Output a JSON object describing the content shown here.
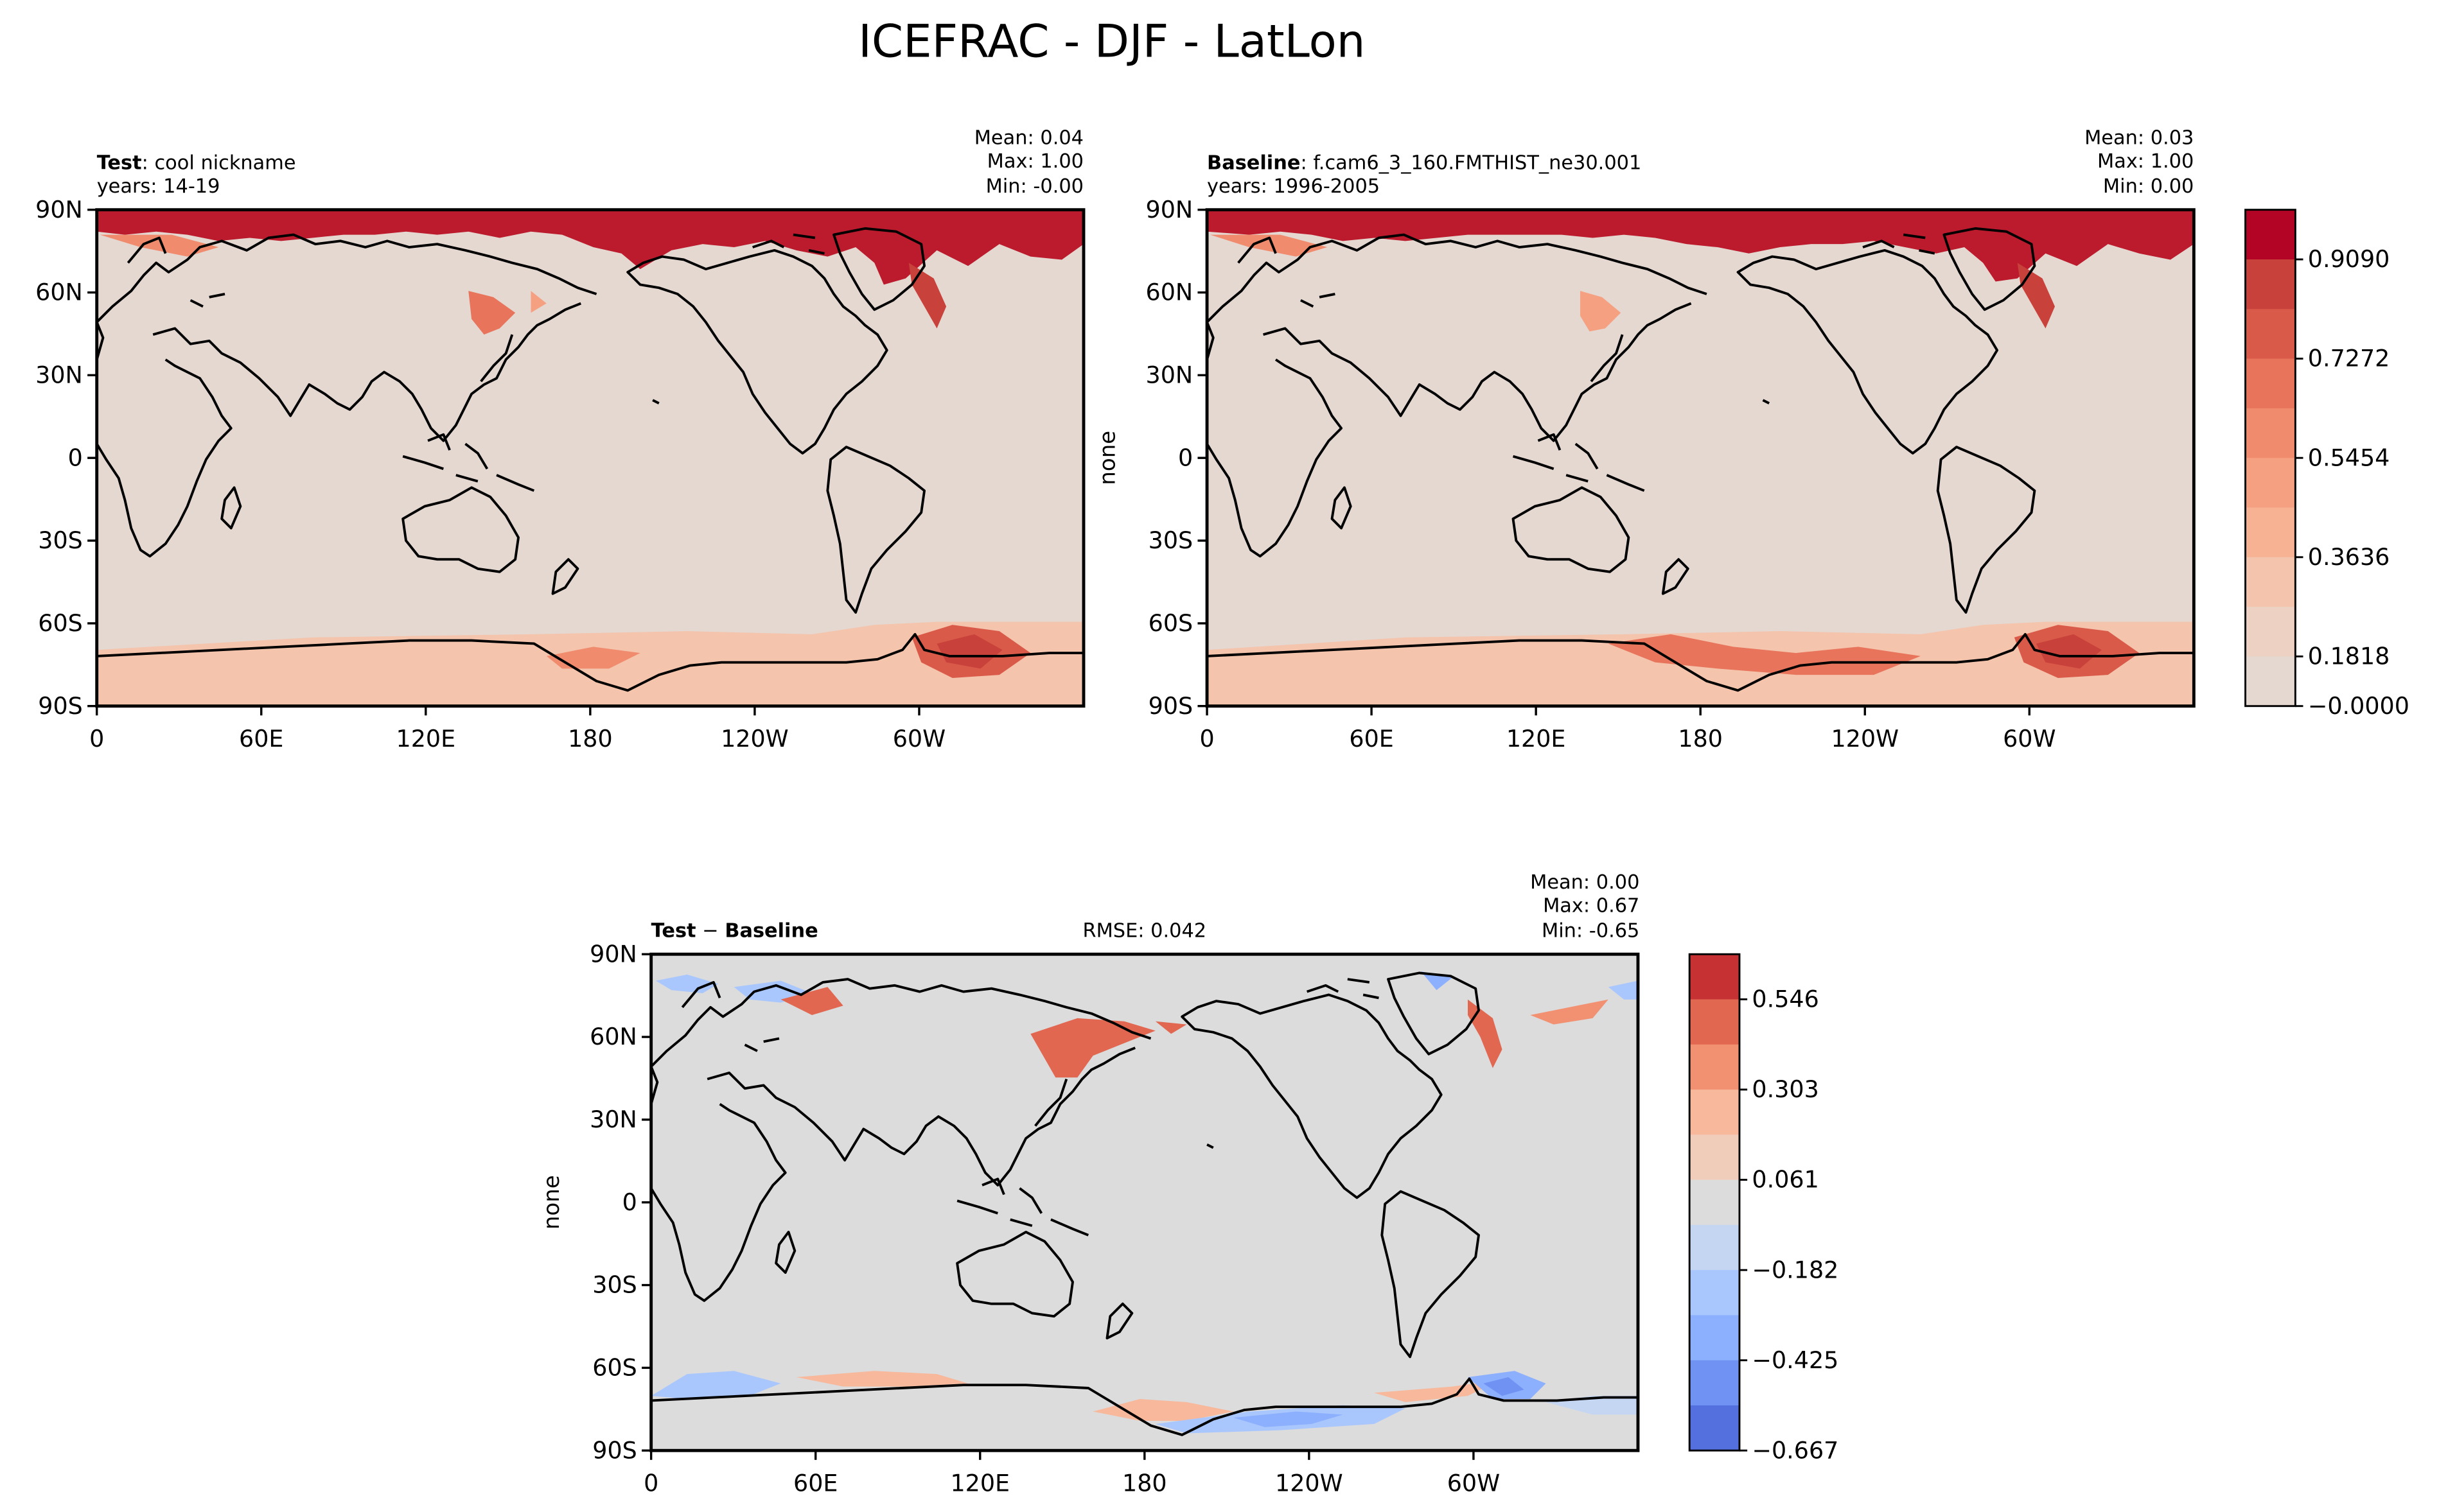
{
  "figure": {
    "title": "ICEFRAC - DJF - LatLon"
  },
  "axis_ticks": {
    "lat": [
      "90N",
      "60N",
      "30N",
      "0",
      "30S",
      "60S",
      "90S"
    ],
    "lon": [
      "0",
      "60E",
      "120E",
      "180",
      "120W",
      "60W"
    ]
  },
  "panels": [
    {
      "id": "test",
      "name_bold": "Test",
      "name_rest": ": cool nickname",
      "years": "years: 14-19",
      "mean": "Mean:  0.04",
      "max": "Max:  1.00",
      "min": "Min: -0.00",
      "ylabel": ""
    },
    {
      "id": "baseline",
      "name_bold": "Baseline",
      "name_rest": ": f.cam6_3_160.FMTHIST_ne30.001",
      "years": "years: 1996-2005",
      "mean": "Mean:  0.03",
      "max": "Max:  1.00",
      "min": "Min:  0.00",
      "ylabel": "none"
    },
    {
      "id": "diff",
      "name_bold": "Test",
      "name_rest": " − ",
      "name_bold2": "Baseline",
      "rmse": "RMSE: 0.042",
      "mean": "Mean:  0.00",
      "max": "Max:  0.67",
      "min": "Min: -0.65",
      "ylabel": "none"
    }
  ],
  "colorbars": [
    {
      "id": "main",
      "labels": [
        "0.9090",
        "0.7272",
        "0.5454",
        "0.3636",
        "0.1818",
        "−0.0000"
      ],
      "colors": [
        "#b40426",
        "#c9413b",
        "#da5a49",
        "#e7745b",
        "#f08b6e",
        "#f5a081",
        "#f6b293",
        "#f4c4ad",
        "#edd1c2",
        "#e5d8d1"
      ]
    },
    {
      "id": "diff",
      "labels": [
        "0.546",
        "0.303",
        "0.061",
        "−0.182",
        "−0.425",
        "−0.667"
      ],
      "colors": [
        "#c63233",
        "#e16751",
        "#f29072",
        "#f7b89c",
        "#f0cdbb",
        "#dcdcdc",
        "#c5d6f2",
        "#aac7fd",
        "#8caffe",
        "#6f92f3",
        "#5470de"
      ]
    }
  ],
  "colors": {
    "ocean_main": "#e5d8d1",
    "ocean_diff": "#dcdcdc",
    "ice_dark": "#bb1b2c"
  }
}
